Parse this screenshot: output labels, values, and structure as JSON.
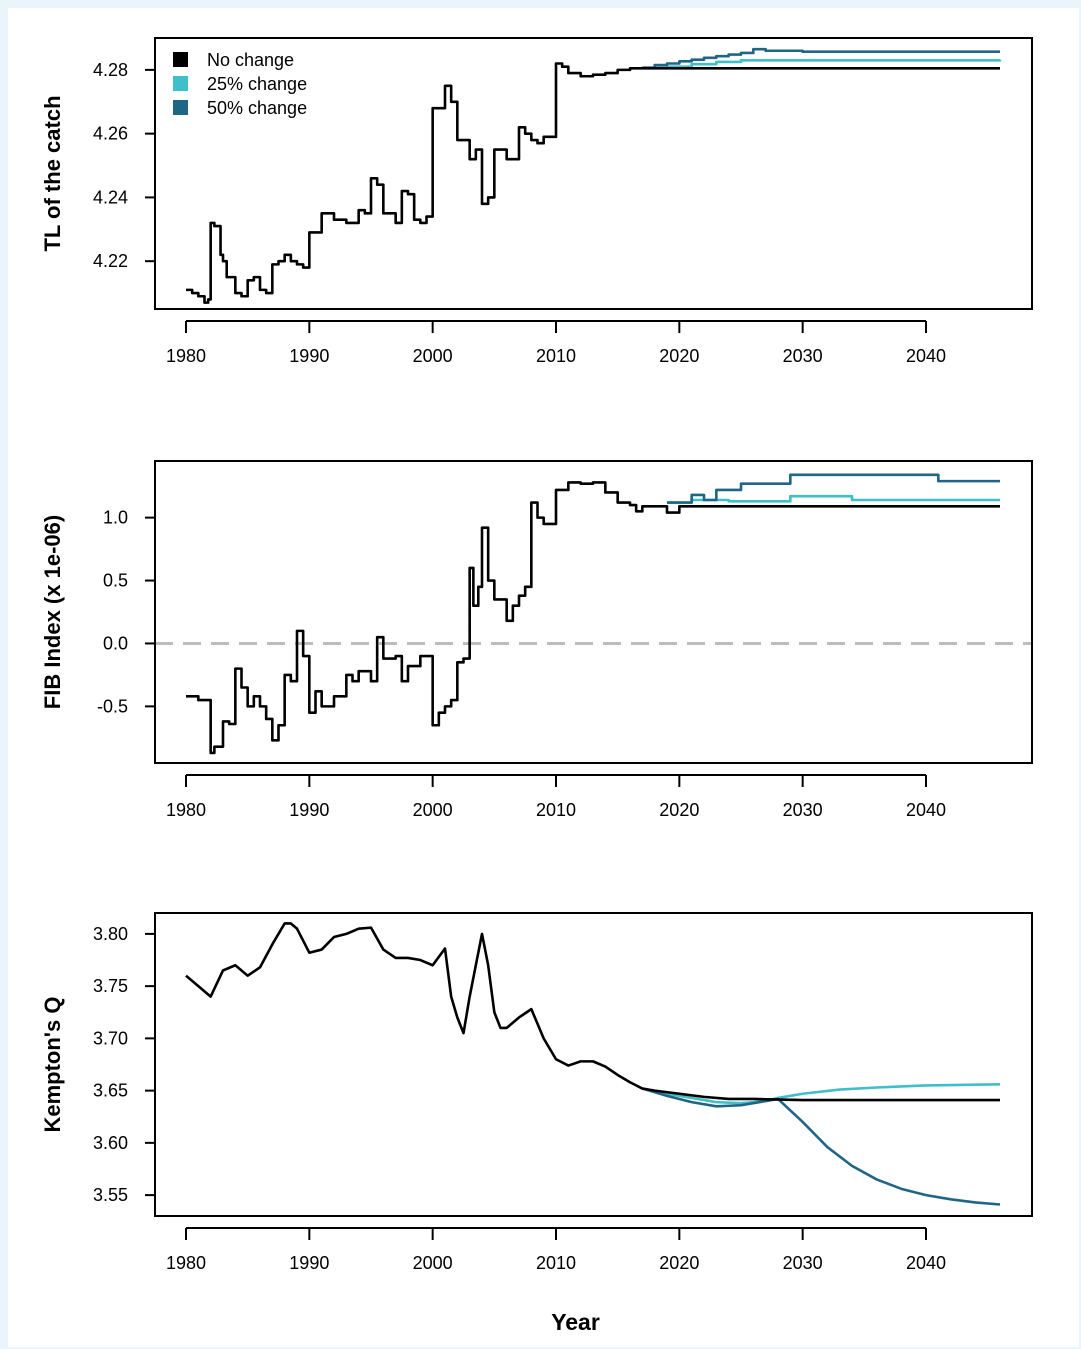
{
  "colors": {
    "background": "#e9f5fb",
    "no_change": "#000000",
    "change_25": "#3fbfc9",
    "change_50": "#1f6585",
    "zero_line": "#bdbdbd"
  },
  "chart_data": [
    {
      "type": "line",
      "ylabel": "TL of the catch",
      "xlabel": "",
      "xlim": [
        1980,
        2046
      ],
      "ylim": [
        4.205,
        4.29
      ],
      "xticks": [
        1980,
        1990,
        2000,
        2010,
        2020,
        2030,
        2040
      ],
      "yticks": [
        4.22,
        4.24,
        4.26,
        4.28
      ],
      "ytick_labels": [
        "4.22",
        "4.24",
        "4.26",
        "4.28"
      ],
      "legend": {
        "position": "top-left",
        "entries": [
          "No change",
          "25% change",
          "50% change"
        ]
      },
      "series": [
        {
          "name": "No change",
          "step": true,
          "x": [
            1980,
            1980.5,
            1981,
            1981.5,
            1981.8,
            1982,
            1982.3,
            1982.8,
            1983,
            1983.3,
            1984,
            1984.5,
            1985,
            1985.5,
            1986,
            1986.5,
            1987,
            1987.5,
            1988,
            1988.5,
            1989,
            1989.5,
            1990,
            1991,
            1992,
            1993,
            1994,
            1994.5,
            1995,
            1995.5,
            1996,
            1997,
            1997.5,
            1998,
            1998.5,
            1999,
            1999.5,
            2000,
            2001,
            2001.5,
            2002,
            2003,
            2003.5,
            2004,
            2004.5,
            2005,
            2006,
            2006.5,
            2007,
            2007.5,
            2008,
            2008.5,
            2009,
            2010,
            2010.5,
            2011,
            2012,
            2013,
            2014,
            2015,
            2016,
            2017,
            2046
          ],
          "y": [
            4.211,
            4.21,
            4.209,
            4.207,
            4.208,
            4.232,
            4.231,
            4.222,
            4.22,
            4.215,
            4.21,
            4.209,
            4.214,
            4.215,
            4.211,
            4.21,
            4.219,
            4.22,
            4.222,
            4.22,
            4.219,
            4.218,
            4.229,
            4.235,
            4.233,
            4.232,
            4.236,
            4.235,
            4.246,
            4.244,
            4.235,
            4.232,
            4.242,
            4.241,
            4.233,
            4.232,
            4.234,
            4.268,
            4.275,
            4.27,
            4.258,
            4.252,
            4.255,
            4.238,
            4.24,
            4.255,
            4.252,
            4.252,
            4.262,
            4.26,
            4.258,
            4.257,
            4.259,
            4.282,
            4.281,
            4.279,
            4.278,
            4.2785,
            4.279,
            4.28,
            4.2805,
            4.2805,
            4.2805
          ]
        },
        {
          "name": "25% change",
          "step": true,
          "x": [
            2017,
            2019,
            2021,
            2023,
            2025,
            2046
          ],
          "y": [
            4.2807,
            4.281,
            4.2818,
            4.2825,
            4.283,
            4.2832
          ]
        },
        {
          "name": "50% change",
          "step": true,
          "x": [
            2017,
            2018,
            2019,
            2020,
            2021,
            2022,
            2023,
            2024,
            2025,
            2026,
            2027,
            2030,
            2046
          ],
          "y": [
            4.2807,
            4.2815,
            4.282,
            4.2827,
            4.2832,
            4.2838,
            4.2843,
            4.2848,
            4.2853,
            4.2865,
            4.286,
            4.2857,
            4.2857
          ]
        }
      ]
    },
    {
      "type": "line",
      "ylabel": "FIB Index (x 1e-06)",
      "xlabel": "",
      "xlim": [
        1980,
        2046
      ],
      "ylim": [
        -0.95,
        1.45
      ],
      "xticks": [
        1980,
        1990,
        2000,
        2010,
        2020,
        2030,
        2040
      ],
      "yticks": [
        -0.5,
        0.0,
        0.5,
        1.0
      ],
      "ytick_labels": [
        "-0.5",
        "0.0",
        "0.5",
        "1.0"
      ],
      "reference_line": 0,
      "series": [
        {
          "name": "No change",
          "step": true,
          "x": [
            1980,
            1981,
            1982,
            1982.3,
            1983,
            1983.5,
            1984,
            1984.5,
            1985,
            1985.5,
            1986,
            1986.5,
            1987,
            1987.5,
            1988,
            1988.5,
            1989,
            1989.5,
            1990,
            1990.5,
            1991,
            1992,
            1993,
            1993.5,
            1994,
            1995,
            1995.5,
            1996,
            1997,
            1997.5,
            1998,
            1999,
            2000,
            2000.5,
            2001,
            2001.5,
            2002,
            2002.5,
            2003,
            2003.3,
            2003.7,
            2004,
            2004.5,
            2005,
            2006,
            2006.5,
            2007,
            2007.5,
            2008,
            2008.5,
            2009,
            2010,
            2011,
            2012,
            2013,
            2014,
            2015,
            2016,
            2016.5,
            2017,
            2019,
            2020,
            2046
          ],
          "y": [
            -0.42,
            -0.45,
            -0.87,
            -0.82,
            -0.62,
            -0.64,
            -0.2,
            -0.35,
            -0.5,
            -0.42,
            -0.5,
            -0.6,
            -0.77,
            -0.65,
            -0.25,
            -0.3,
            0.1,
            -0.1,
            -0.55,
            -0.38,
            -0.5,
            -0.42,
            -0.25,
            -0.3,
            -0.22,
            -0.3,
            0.05,
            -0.12,
            -0.1,
            -0.3,
            -0.18,
            -0.1,
            -0.65,
            -0.55,
            -0.5,
            -0.45,
            -0.15,
            -0.12,
            0.6,
            0.3,
            0.45,
            0.92,
            0.5,
            0.35,
            0.18,
            0.3,
            0.38,
            0.45,
            1.12,
            1.0,
            0.95,
            1.22,
            1.28,
            1.27,
            1.28,
            1.2,
            1.12,
            1.1,
            1.05,
            1.09,
            1.04,
            1.09,
            1.09
          ]
        },
        {
          "name": "25% change",
          "step": true,
          "x": [
            2019,
            2021,
            2024,
            2029,
            2034,
            2046
          ],
          "y": [
            1.12,
            1.14,
            1.13,
            1.17,
            1.14,
            1.14
          ]
        },
        {
          "name": "50% change",
          "step": true,
          "x": [
            2019,
            2021,
            2022,
            2023,
            2025,
            2029,
            2041,
            2046
          ],
          "y": [
            1.12,
            1.18,
            1.14,
            1.22,
            1.27,
            1.34,
            1.29,
            1.29
          ]
        }
      ]
    },
    {
      "type": "line",
      "ylabel": "Kempton's Q",
      "xlabel": "Year",
      "xlim": [
        1980,
        2046
      ],
      "ylim": [
        3.53,
        3.82
      ],
      "xticks": [
        1980,
        1990,
        2000,
        2010,
        2020,
        2030,
        2040
      ],
      "yticks": [
        3.55,
        3.6,
        3.65,
        3.7,
        3.75,
        3.8
      ],
      "ytick_labels": [
        "3.55",
        "3.60",
        "3.65",
        "3.70",
        "3.75",
        "3.80"
      ],
      "series": [
        {
          "name": "No change",
          "step": false,
          "x": [
            1980,
            1981,
            1982,
            1983,
            1984,
            1985,
            1986,
            1987,
            1988,
            1988.5,
            1989,
            1990,
            1991,
            1992,
            1993,
            1994,
            1995,
            1996,
            1997,
            1998,
            1999,
            2000,
            2001,
            2001.5,
            2002,
            2002.5,
            2003,
            2003.5,
            2004,
            2004.5,
            2005,
            2005.5,
            2006,
            2007,
            2008,
            2009,
            2010,
            2011,
            2012,
            2013,
            2014,
            2015,
            2016,
            2017,
            2018,
            2020,
            2022,
            2024,
            2026,
            2030,
            2046
          ],
          "y": [
            3.76,
            3.75,
            3.74,
            3.765,
            3.77,
            3.76,
            3.768,
            3.79,
            3.81,
            3.81,
            3.805,
            3.782,
            3.785,
            3.797,
            3.8,
            3.805,
            3.806,
            3.785,
            3.777,
            3.777,
            3.775,
            3.77,
            3.786,
            3.74,
            3.72,
            3.705,
            3.74,
            3.77,
            3.8,
            3.77,
            3.725,
            3.71,
            3.71,
            3.72,
            3.728,
            3.7,
            3.68,
            3.674,
            3.678,
            3.678,
            3.673,
            3.665,
            3.658,
            3.652,
            3.65,
            3.647,
            3.644,
            3.642,
            3.642,
            3.641,
            3.641
          ]
        },
        {
          "name": "25% change",
          "step": false,
          "x": [
            2017,
            2019,
            2021,
            2023,
            2025,
            2027,
            2028,
            2030,
            2033,
            2036,
            2040,
            2046
          ],
          "y": [
            3.652,
            3.647,
            3.643,
            3.639,
            3.638,
            3.64,
            3.643,
            3.647,
            3.651,
            3.653,
            3.655,
            3.656
          ]
        },
        {
          "name": "50% change",
          "step": false,
          "x": [
            2017,
            2019,
            2021,
            2023,
            2025,
            2027,
            2028,
            2030,
            2032,
            2034,
            2036,
            2038,
            2040,
            2042,
            2044,
            2046
          ],
          "y": [
            3.652,
            3.645,
            3.639,
            3.635,
            3.636,
            3.64,
            3.642,
            3.62,
            3.596,
            3.578,
            3.565,
            3.556,
            3.55,
            3.546,
            3.543,
            3.541
          ]
        }
      ]
    }
  ]
}
